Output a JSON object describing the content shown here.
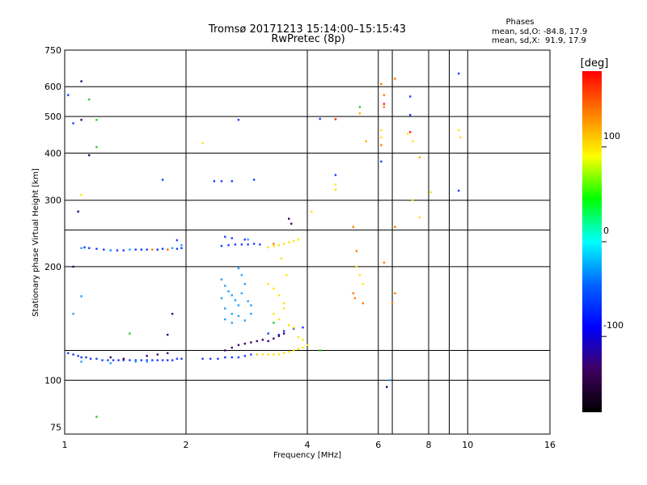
{
  "chart_data": {
    "type": "scatter",
    "title": "Tromsø 20171213 15:14:00–15:15:43",
    "subtitle": "RwPretec (8p)",
    "stats": {
      "header": "Phases",
      "line_o": "mean, sd,O: -84.8, 17.9",
      "line_x": "mean, sd,X:  91.9, 17.9"
    },
    "xlabel": "Frequency [MHz]",
    "ylabel": "Stationary phase Virtual Height [km]",
    "x_scale": "log",
    "y_scale": "log",
    "xlim": [
      1,
      16
    ],
    "ylim": [
      72,
      750
    ],
    "x_ticks": [
      1,
      2,
      4,
      6,
      8,
      10,
      16
    ],
    "y_ticks": [
      75,
      100,
      200,
      300,
      400,
      500,
      600,
      750
    ],
    "grid": true,
    "colorbar": {
      "label": "[deg]",
      "range": [
        -180,
        180
      ],
      "ticks": [
        100,
        0,
        -100
      ],
      "colors": [
        "#ff0000",
        "#ff8000",
        "#ffff00",
        "#00ff00",
        "#00ffff",
        "#0064ff",
        "#0000ff",
        "#400060",
        "#000000"
      ]
    },
    "series": [
      {
        "color": "#1a3cff",
        "points": [
          [
            1.02,
            118
          ],
          [
            1.05,
            117
          ],
          [
            1.08,
            116
          ],
          [
            1.1,
            115
          ],
          [
            1.13,
            115
          ],
          [
            1.16,
            114
          ],
          [
            1.2,
            114
          ],
          [
            1.24,
            113
          ],
          [
            1.28,
            113
          ],
          [
            1.32,
            113
          ],
          [
            1.36,
            113
          ],
          [
            1.4,
            113
          ],
          [
            1.45,
            113
          ],
          [
            1.5,
            113
          ],
          [
            1.55,
            113
          ],
          [
            1.6,
            113
          ],
          [
            1.65,
            113
          ],
          [
            1.7,
            113
          ],
          [
            1.75,
            113
          ],
          [
            1.8,
            113
          ],
          [
            1.85,
            113
          ],
          [
            1.9,
            114
          ],
          [
            1.95,
            114
          ],
          [
            2.2,
            114
          ],
          [
            2.3,
            114
          ],
          [
            2.4,
            114
          ],
          [
            2.5,
            115
          ],
          [
            2.6,
            115
          ],
          [
            2.7,
            115
          ],
          [
            2.8,
            116
          ],
          [
            2.9,
            117
          ],
          [
            3.0,
            117
          ],
          [
            1.12,
            225
          ],
          [
            1.15,
            224
          ],
          [
            1.2,
            223
          ],
          [
            1.25,
            222
          ],
          [
            1.3,
            221
          ],
          [
            1.35,
            221
          ],
          [
            1.4,
            221
          ],
          [
            1.5,
            222
          ],
          [
            1.55,
            222
          ],
          [
            1.6,
            222
          ],
          [
            1.7,
            222
          ],
          [
            1.75,
            223
          ],
          [
            1.8,
            222
          ],
          [
            1.9,
            223
          ],
          [
            1.95,
            224
          ],
          [
            2.45,
            227
          ],
          [
            2.55,
            228
          ],
          [
            2.65,
            229
          ],
          [
            2.75,
            229
          ],
          [
            2.85,
            229
          ],
          [
            2.95,
            230
          ],
          [
            3.05,
            229
          ],
          [
            1.75,
            340
          ],
          [
            2.35,
            337
          ],
          [
            2.45,
            337
          ],
          [
            2.6,
            337
          ],
          [
            2.95,
            340
          ],
          [
            2.7,
            490
          ],
          [
            1.02,
            570
          ],
          [
            1.05,
            480
          ],
          [
            4.7,
            350
          ],
          [
            6.1,
            380
          ],
          [
            7.2,
            565
          ],
          [
            7.2,
            505
          ],
          [
            9.5,
            650
          ],
          [
            9.5,
            318
          ],
          [
            4.3,
            493
          ],
          [
            2.5,
            240
          ],
          [
            2.6,
            238
          ],
          [
            2.8,
            236
          ],
          [
            1.9,
            235
          ],
          [
            3.2,
            133
          ],
          [
            3.4,
            132
          ],
          [
            3.5,
            135
          ],
          [
            3.7,
            137
          ],
          [
            3.9,
            138
          ]
        ]
      },
      {
        "color": "#1e9fff",
        "points": [
          [
            2.45,
            185
          ],
          [
            2.5,
            178
          ],
          [
            2.55,
            172
          ],
          [
            2.6,
            168
          ],
          [
            2.65,
            163
          ],
          [
            2.7,
            158
          ],
          [
            2.75,
            170
          ],
          [
            2.8,
            180
          ],
          [
            2.6,
            150
          ],
          [
            2.7,
            148
          ],
          [
            2.5,
            155
          ],
          [
            2.85,
            162
          ],
          [
            2.9,
            150
          ],
          [
            2.75,
            190
          ],
          [
            2.7,
            198
          ],
          [
            2.45,
            165
          ],
          [
            2.5,
            145
          ],
          [
            2.6,
            142
          ],
          [
            2.8,
            144
          ],
          [
            2.9,
            158
          ],
          [
            1.1,
            224
          ],
          [
            1.3,
            221
          ],
          [
            1.45,
            222
          ],
          [
            1.85,
            224
          ],
          [
            1.95,
            228
          ],
          [
            1.3,
            111
          ],
          [
            1.5,
            112
          ],
          [
            1.6,
            112
          ],
          [
            1.1,
            112
          ],
          [
            2.85,
            236
          ],
          [
            1.05,
            150
          ],
          [
            1.1,
            167
          ],
          [
            6.4,
            100
          ]
        ]
      },
      {
        "color": "#ffe400",
        "points": [
          [
            3.0,
            117
          ],
          [
            3.1,
            117
          ],
          [
            3.2,
            117
          ],
          [
            3.3,
            117
          ],
          [
            3.4,
            117
          ],
          [
            3.5,
            118
          ],
          [
            3.6,
            119
          ],
          [
            3.7,
            120
          ],
          [
            3.8,
            121
          ],
          [
            3.9,
            122
          ],
          [
            4.0,
            124
          ],
          [
            3.2,
            225
          ],
          [
            3.3,
            227
          ],
          [
            3.4,
            228
          ],
          [
            3.5,
            230
          ],
          [
            3.6,
            232
          ],
          [
            3.7,
            234
          ],
          [
            3.8,
            236
          ],
          [
            3.2,
            180
          ],
          [
            3.3,
            175
          ],
          [
            3.4,
            168
          ],
          [
            3.5,
            160
          ],
          [
            3.3,
            150
          ],
          [
            3.4,
            145
          ],
          [
            3.5,
            155
          ],
          [
            3.55,
            190
          ],
          [
            3.45,
            210
          ],
          [
            3.6,
            140
          ],
          [
            3.7,
            138
          ],
          [
            3.8,
            130
          ],
          [
            3.9,
            128
          ],
          [
            5.3,
            200
          ],
          [
            5.4,
            190
          ],
          [
            5.5,
            180
          ],
          [
            4.7,
            330
          ],
          [
            4.7,
            320
          ],
          [
            6.1,
            440
          ],
          [
            6.1,
            460
          ],
          [
            7.1,
            450
          ],
          [
            7.3,
            430
          ],
          [
            9.5,
            460
          ],
          [
            9.6,
            440
          ],
          [
            2.2,
            425
          ],
          [
            1.1,
            310
          ],
          [
            7.3,
            300
          ],
          [
            7.6,
            270
          ],
          [
            8.1,
            315
          ],
          [
            4.1,
            280
          ]
        ]
      },
      {
        "color": "#ff7800",
        "points": [
          [
            5.2,
            170
          ],
          [
            5.25,
            165
          ],
          [
            6.2,
            530
          ],
          [
            6.2,
            570
          ],
          [
            6.6,
            630
          ],
          [
            6.1,
            610
          ],
          [
            6.6,
            255
          ],
          [
            6.6,
            170
          ],
          [
            6.5,
            160
          ],
          [
            6.2,
            205
          ],
          [
            6.1,
            420
          ],
          [
            5.2,
            255
          ],
          [
            5.3,
            220
          ],
          [
            1.65,
            222
          ],
          [
            1.8,
            222
          ],
          [
            3.3,
            230
          ],
          [
            5.5,
            160
          ]
        ]
      },
      {
        "color": "#ff2000",
        "points": [
          [
            4.7,
            492
          ],
          [
            6.2,
            540
          ],
          [
            7.2,
            455
          ]
        ]
      },
      {
        "color": "#3a0070",
        "points": [
          [
            1.08,
            280
          ],
          [
            1.1,
            620
          ],
          [
            1.15,
            395
          ],
          [
            1.3,
            115
          ],
          [
            1.4,
            114
          ],
          [
            1.6,
            116
          ],
          [
            1.7,
            117
          ],
          [
            1.8,
            118
          ],
          [
            2.5,
            120
          ],
          [
            2.6,
            122
          ],
          [
            2.7,
            124
          ],
          [
            2.8,
            125
          ],
          [
            2.9,
            126
          ],
          [
            3.0,
            127
          ],
          [
            3.1,
            128
          ],
          [
            3.2,
            127
          ],
          [
            3.3,
            129
          ],
          [
            3.4,
            131
          ],
          [
            3.5,
            133
          ],
          [
            3.6,
            268
          ],
          [
            3.65,
            260
          ],
          [
            1.8,
            132
          ],
          [
            1.85,
            150
          ],
          [
            6.3,
            96
          ],
          [
            1.05,
            200
          ],
          [
            1.1,
            490
          ]
        ]
      },
      {
        "color": "#22cc22",
        "points": [
          [
            1.2,
            490
          ],
          [
            1.2,
            415
          ],
          [
            1.15,
            555
          ],
          [
            5.4,
            530
          ],
          [
            4.3,
            120
          ],
          [
            1.2,
            80
          ],
          [
            1.45,
            133
          ],
          [
            3.3,
            142
          ]
        ]
      },
      {
        "color": "#ffb000",
        "points": [
          [
            5.4,
            510
          ],
          [
            5.6,
            430
          ],
          [
            7.6,
            390
          ]
        ]
      }
    ]
  }
}
